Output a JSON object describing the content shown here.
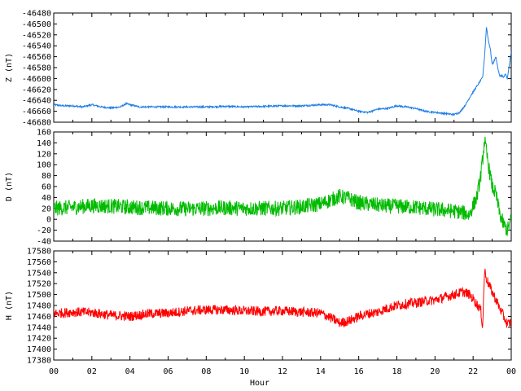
{
  "chart_data": {
    "type": "line",
    "x_label": "Hour",
    "x_tick_labels": [
      "00",
      "02",
      "04",
      "06",
      "08",
      "10",
      "12",
      "14",
      "16",
      "18",
      "20",
      "22",
      "00"
    ],
    "x_range": [
      0,
      24
    ],
    "panels": [
      {
        "id": "z",
        "ylabel": "Z (nT)",
        "color": "#1e7ee6",
        "ylim": [
          -46680,
          -46480
        ],
        "yticks": [
          -46680,
          -46660,
          -46640,
          -46620,
          -46600,
          -46580,
          -46560,
          -46540,
          -46520,
          -46500,
          -46480
        ],
        "noise": 1.5,
        "series": {
          "x": [
            0,
            0.5,
            1,
            1.5,
            2,
            2.5,
            3,
            3.5,
            3.8,
            4,
            4.5,
            5,
            6,
            7,
            8,
            9,
            10,
            11,
            12,
            13,
            14,
            14.5,
            15,
            15.5,
            16,
            16.5,
            17,
            17.5,
            18,
            18.5,
            19,
            19.5,
            20,
            20.5,
            21,
            21.3,
            21.6,
            21.9,
            22.2,
            22.5,
            22.6,
            22.7,
            22.8,
            22.9,
            23,
            23.1,
            23.2,
            23.3,
            23.4,
            23.5,
            23.6,
            23.7,
            23.8,
            23.9,
            24
          ],
          "y": [
            -46648,
            -46650,
            -46650,
            -46652,
            -46648,
            -46652,
            -46654,
            -46652,
            -46646,
            -46648,
            -46652,
            -46652,
            -46652,
            -46652,
            -46652,
            -46651,
            -46652,
            -46651,
            -46650,
            -46650,
            -46648,
            -46648,
            -46652,
            -46655,
            -46660,
            -46662,
            -46656,
            -46655,
            -46650,
            -46652,
            -46655,
            -46660,
            -46662,
            -46664,
            -46666,
            -46662,
            -46648,
            -46630,
            -46614,
            -46598,
            -46560,
            -46505,
            -46530,
            -46545,
            -46575,
            -46568,
            -46560,
            -46582,
            -46596,
            -46594,
            -46598,
            -46592,
            -46600,
            -46575,
            -46552
          ]
        }
      },
      {
        "id": "d",
        "ylabel": "D (nT)",
        "color": "#00bb00",
        "ylim": [
          -40,
          160
        ],
        "yticks": [
          -40,
          -20,
          0,
          20,
          40,
          60,
          80,
          100,
          120,
          140,
          160
        ],
        "noise": 14,
        "series": {
          "x": [
            0,
            1,
            2,
            3,
            4,
            5,
            6,
            7,
            8,
            9,
            10,
            11,
            12,
            13,
            14,
            14.5,
            15,
            15.5,
            16,
            16.5,
            17,
            17.5,
            18,
            19,
            20,
            21,
            21.5,
            21.8,
            22,
            22.2,
            22.4,
            22.5,
            22.6,
            22.8,
            23,
            23.2,
            23.4,
            23.6,
            23.8,
            24
          ],
          "y": [
            20,
            22,
            25,
            24,
            22,
            21,
            20,
            19,
            20,
            21,
            20,
            20,
            20,
            23,
            28,
            35,
            42,
            38,
            30,
            28,
            26,
            24,
            24,
            22,
            18,
            15,
            12,
            8,
            25,
            40,
            80,
            110,
            145,
            100,
            60,
            45,
            10,
            -10,
            -20,
            0
          ]
        }
      },
      {
        "id": "h",
        "ylabel": "H (nT)",
        "color": "#ff0000",
        "ylim": [
          17380,
          17580
        ],
        "yticks": [
          17380,
          17400,
          17420,
          17440,
          17460,
          17480,
          17500,
          17520,
          17540,
          17560,
          17580
        ],
        "noise": 9,
        "series": {
          "x": [
            0,
            1,
            2,
            3,
            4,
            5,
            6,
            7,
            8,
            9,
            10,
            11,
            12,
            13,
            14,
            14.5,
            15,
            15.5,
            16,
            16.5,
            17,
            17.5,
            18,
            18.5,
            19,
            19.5,
            20,
            20.5,
            21,
            21.5,
            21.8,
            22,
            22.2,
            22.4,
            22.5,
            22.6,
            22.7,
            22.8,
            23,
            23.2,
            23.4,
            23.6,
            23.8,
            24
          ],
          "y": [
            17465,
            17468,
            17467,
            17462,
            17460,
            17465,
            17466,
            17470,
            17472,
            17472,
            17470,
            17469,
            17470,
            17468,
            17466,
            17458,
            17448,
            17452,
            17460,
            17465,
            17468,
            17475,
            17480,
            17483,
            17485,
            17488,
            17490,
            17495,
            17500,
            17505,
            17500,
            17492,
            17482,
            17472,
            17440,
            17545,
            17530,
            17520,
            17505,
            17490,
            17475,
            17460,
            17445,
            17450
          ]
        }
      }
    ]
  }
}
